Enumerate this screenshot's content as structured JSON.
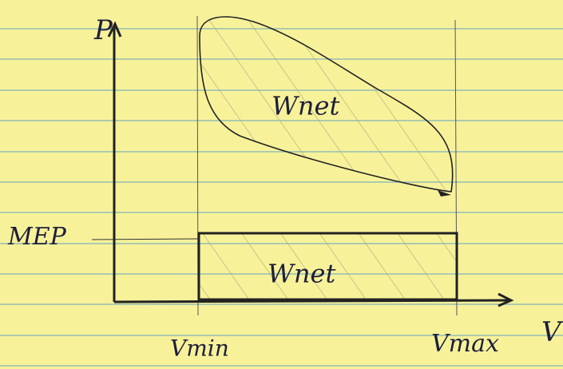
{
  "axes": {
    "y_label": "P",
    "x_label": "V"
  },
  "labels": {
    "mep": "MEP",
    "vmin": "Vmin",
    "vmax": "Vmax"
  },
  "regions": [
    {
      "label": "Wnet"
    },
    {
      "label": "Wnet"
    }
  ]
}
